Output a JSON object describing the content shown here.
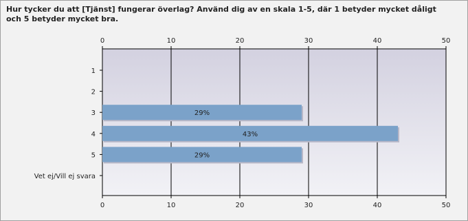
{
  "chart_data": {
    "type": "bar",
    "orientation": "horizontal",
    "title": "Hur tycker du att [Tjänst] fungerar överlag? Använd dig av en skala 1-5, där 1 betyder mycket dåligt och 5 betyder mycket bra.",
    "categories": [
      "1",
      "2",
      "3",
      "4",
      "5",
      "Vet ej/Vill ej svara"
    ],
    "values": [
      0,
      0,
      29,
      43,
      29,
      0
    ],
    "value_labels": [
      null,
      null,
      "29%",
      "43%",
      "29%",
      null
    ],
    "color": "#7ba2c9",
    "xlim": [
      0,
      50
    ],
    "xticks": [
      0,
      10,
      20,
      30,
      40,
      50
    ],
    "grid": true
  }
}
